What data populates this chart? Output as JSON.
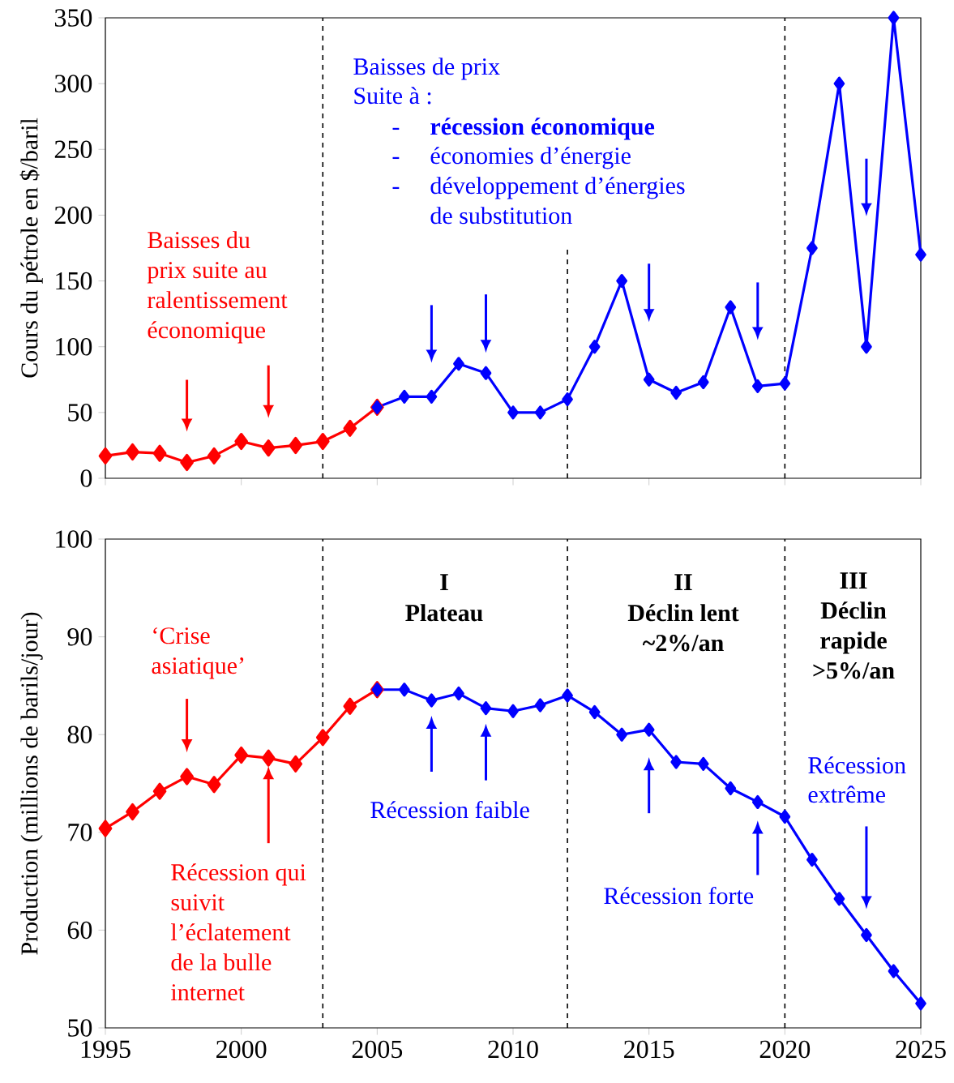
{
  "chart_data": [
    {
      "type": "line",
      "ylabel": "Cours du pétrole en $/baril",
      "xlim": [
        1995,
        2025
      ],
      "xticks": [
        1995,
        2000,
        2005,
        2010,
        2015,
        2020,
        2025
      ],
      "ylim": [
        0,
        350
      ],
      "yticks": [
        0,
        50,
        100,
        150,
        200,
        250,
        300,
        350
      ],
      "tick_labels": "y",
      "marker": "diamond",
      "series": [
        {
          "color": "#ff0000",
          "x": [
            1995,
            1996,
            1997,
            1998,
            1999,
            2000,
            2001,
            2002,
            2003,
            2004,
            2005
          ],
          "values": [
            17,
            20,
            19,
            12,
            17,
            28,
            23,
            25,
            28,
            38,
            54
          ]
        },
        {
          "color": "#0000ff",
          "x": [
            2005,
            2006,
            2007,
            2008,
            2009,
            2010,
            2011,
            2012,
            2013,
            2014,
            2015,
            2016,
            2017,
            2018,
            2019,
            2020,
            2021,
            2022,
            2023,
            2024,
            2025
          ],
          "values": [
            54,
            62,
            62,
            87,
            80,
            50,
            50,
            60,
            100,
            150,
            75,
            65,
            73,
            130,
            70,
            72,
            175,
            300,
            100,
            350,
            170
          ]
        }
      ],
      "ref_lines": [
        {
          "axis": "x",
          "value": 2003,
          "color": "#000000",
          "line_style": "dashed"
        },
        {
          "axis": "x",
          "value": 2012,
          "color": "#000000",
          "line_style": "dashed"
        },
        {
          "axis": "x",
          "value": 2020,
          "color": "#000000",
          "line_style": "dashed"
        }
      ],
      "annotations": [
        "Baisses de prix",
        "Suite à :",
        "-",
        "récession économique",
        "-",
        "économies d’énergie",
        "-",
        "développement d’énergies",
        "de substitution",
        "Baisses du",
        "prix suite au",
        "ralentissement",
        "économique"
      ]
    },
    {
      "type": "line",
      "ylabel": "Production (millions de barils/jour)",
      "xlim": [
        1995,
        2025
      ],
      "xticks": [
        1995,
        2000,
        2005,
        2010,
        2015,
        2020,
        2025
      ],
      "ylim": [
        50,
        100
      ],
      "yticks": [
        50,
        60,
        70,
        80,
        90,
        100
      ],
      "marker": "diamond",
      "series": [
        {
          "color": "#ff0000",
          "x": [
            1995,
            1996,
            1997,
            1998,
            1999,
            2000,
            2001,
            2002,
            2003,
            2004,
            2005
          ],
          "values": [
            70.4,
            72.1,
            74.2,
            75.7,
            74.9,
            77.9,
            77.6,
            77.0,
            79.7,
            82.9,
            84.6
          ]
        },
        {
          "color": "#0000ff",
          "x": [
            2005,
            2006,
            2007,
            2008,
            2009,
            2010,
            2011,
            2012,
            2013,
            2014,
            2015,
            2016,
            2017,
            2018,
            2019,
            2020,
            2021,
            2022,
            2023,
            2024,
            2025
          ],
          "values": [
            84.6,
            84.6,
            83.5,
            84.2,
            82.7,
            82.4,
            83.0,
            84.0,
            82.3,
            80.0,
            80.5,
            77.2,
            77.0,
            74.5,
            73.1,
            71.6,
            67.2,
            63.2,
            59.5,
            55.8,
            52.5
          ]
        }
      ],
      "ref_lines": [
        {
          "axis": "x",
          "value": 2003,
          "color": "#000000",
          "line_style": "dashed"
        },
        {
          "axis": "x",
          "value": 2012,
          "color": "#000000",
          "line_style": "dashed"
        },
        {
          "axis": "x",
          "value": 2020,
          "color": "#000000",
          "line_style": "dashed"
        }
      ],
      "annotations": [
        "I",
        "Plateau",
        "II",
        "Déclin lent",
        "~2%/an",
        "III",
        "Déclin",
        "rapide",
        ">5%/an",
        "‘Crise",
        "asiatique’",
        "Récession qui",
        "suivit",
        "l’éclatement",
        "de la bulle",
        "internet",
        "Récession faible",
        "Récession forte",
        "Récession",
        "extrême"
      ]
    }
  ]
}
